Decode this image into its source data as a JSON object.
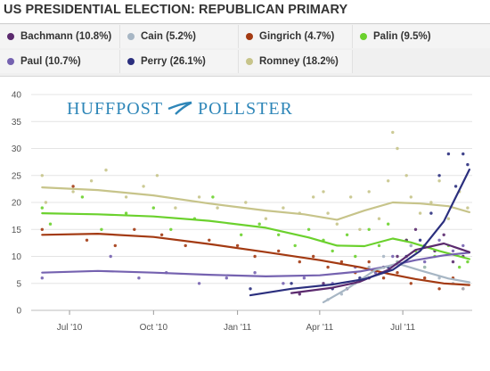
{
  "header": {
    "title": "US PRESIDENTIAL ELECTION: REPUBLICAN PRIMARY"
  },
  "legend": [
    {
      "label": "Bachmann (10.8%)",
      "color": "#5b2a6e",
      "icon": "dot-icon"
    },
    {
      "label": "Cain (5.2%)",
      "color": "#a7b6c4",
      "icon": "dot-icon"
    },
    {
      "label": "Gingrich (4.7%)",
      "color": "#a33a12",
      "icon": "dot-icon"
    },
    {
      "label": "Palin (9.5%)",
      "color": "#6bd12d",
      "icon": "dot-icon"
    },
    {
      "label": "Paul (10.7%)",
      "color": "#7562b0",
      "icon": "dot-icon"
    },
    {
      "label": "Perry (26.1%)",
      "color": "#2b2f7e",
      "icon": "dot-icon"
    },
    {
      "label": "Romney (18.2%)",
      "color": "#c7c48a",
      "icon": "dot-icon"
    }
  ],
  "watermark": {
    "left": "HUFFPOST",
    "right": "POLLSTER",
    "color": "#2e86b8"
  },
  "chart_data": {
    "type": "line",
    "title": "US PRESIDENTIAL ELECTION: REPUBLICAN PRIMARY",
    "xlabel": "",
    "ylabel": "",
    "x_range": [
      "2010-05-20",
      "2011-09-15"
    ],
    "ylim": [
      0,
      40
    ],
    "y_ticks": [
      "0",
      "5",
      "10",
      "15",
      "20",
      "25",
      "30",
      "35",
      "40"
    ],
    "x_ticks": [
      {
        "label": "Jul '10",
        "date": "2010-07-01"
      },
      {
        "label": "Oct '10",
        "date": "2010-10-01"
      },
      {
        "label": "Jan '11",
        "date": "2011-01-01"
      },
      {
        "label": "Apr '11",
        "date": "2011-04-01"
      },
      {
        "label": "Jul '11",
        "date": "2011-07-01"
      }
    ],
    "grid": true,
    "series": [
      {
        "name": "Romney",
        "color": "#c7c48a",
        "trend": [
          [
            "2010-06-01",
            22.8
          ],
          [
            "2010-08-01",
            22.3
          ],
          [
            "2010-10-01",
            21.3
          ],
          [
            "2010-12-01",
            19.8
          ],
          [
            "2011-02-01",
            18.5
          ],
          [
            "2011-03-15",
            17.8
          ],
          [
            "2011-04-20",
            16.8
          ],
          [
            "2011-05-20",
            18.5
          ],
          [
            "2011-06-20",
            20.0
          ],
          [
            "2011-07-20",
            19.8
          ],
          [
            "2011-08-20",
            19.3
          ],
          [
            "2011-09-12",
            18.2
          ]
        ],
        "points": [
          [
            "2010-06-01",
            25
          ],
          [
            "2010-06-05",
            20
          ],
          [
            "2010-07-05",
            22
          ],
          [
            "2010-07-25",
            24
          ],
          [
            "2010-08-10",
            26
          ],
          [
            "2010-09-01",
            21
          ],
          [
            "2010-09-20",
            23
          ],
          [
            "2010-10-05",
            25
          ],
          [
            "2010-10-25",
            19
          ],
          [
            "2010-11-20",
            21
          ],
          [
            "2010-12-10",
            19
          ],
          [
            "2011-01-10",
            20
          ],
          [
            "2011-02-01",
            17
          ],
          [
            "2011-02-20",
            19
          ],
          [
            "2011-03-10",
            18
          ],
          [
            "2011-03-25",
            21
          ],
          [
            "2011-04-05",
            22
          ],
          [
            "2011-04-10",
            18
          ],
          [
            "2011-04-20",
            16
          ],
          [
            "2011-05-05",
            21
          ],
          [
            "2011-05-15",
            15
          ],
          [
            "2011-05-25",
            22
          ],
          [
            "2011-06-05",
            17
          ],
          [
            "2011-06-15",
            24
          ],
          [
            "2011-06-20",
            33
          ],
          [
            "2011-06-25",
            30
          ],
          [
            "2011-07-05",
            25
          ],
          [
            "2011-07-10",
            21
          ],
          [
            "2011-07-20",
            18
          ],
          [
            "2011-08-01",
            20
          ],
          [
            "2011-08-10",
            24
          ],
          [
            "2011-08-20",
            17
          ],
          [
            "2011-09-01",
            22
          ],
          [
            "2011-09-10",
            19
          ]
        ]
      },
      {
        "name": "Palin",
        "color": "#6bd12d",
        "trend": [
          [
            "2010-06-01",
            18.0
          ],
          [
            "2010-08-01",
            17.8
          ],
          [
            "2010-10-01",
            17.4
          ],
          [
            "2010-12-01",
            16.6
          ],
          [
            "2011-02-01",
            15.3
          ],
          [
            "2011-03-20",
            13.5
          ],
          [
            "2011-04-20",
            12.0
          ],
          [
            "2011-05-20",
            11.9
          ],
          [
            "2011-06-20",
            13.3
          ],
          [
            "2011-07-10",
            12.6
          ],
          [
            "2011-08-10",
            11.0
          ],
          [
            "2011-09-12",
            9.5
          ]
        ],
        "points": [
          [
            "2010-06-01",
            19
          ],
          [
            "2010-06-10",
            16
          ],
          [
            "2010-07-15",
            21
          ],
          [
            "2010-08-05",
            15
          ],
          [
            "2010-09-01",
            18
          ],
          [
            "2010-10-01",
            19
          ],
          [
            "2010-10-20",
            15
          ],
          [
            "2010-11-15",
            17
          ],
          [
            "2010-12-05",
            21
          ],
          [
            "2011-01-05",
            14
          ],
          [
            "2011-01-25",
            16
          ],
          [
            "2011-02-15",
            14
          ],
          [
            "2011-03-05",
            12
          ],
          [
            "2011-03-20",
            15
          ],
          [
            "2011-04-05",
            13
          ],
          [
            "2011-04-15",
            11
          ],
          [
            "2011-05-01",
            14
          ],
          [
            "2011-05-10",
            10
          ],
          [
            "2011-05-25",
            15
          ],
          [
            "2011-06-05",
            12
          ],
          [
            "2011-06-15",
            16
          ],
          [
            "2011-06-25",
            9
          ],
          [
            "2011-07-05",
            13
          ],
          [
            "2011-07-15",
            11
          ],
          [
            "2011-07-25",
            8
          ],
          [
            "2011-08-05",
            10
          ],
          [
            "2011-08-20",
            12
          ],
          [
            "2011-09-01",
            8
          ],
          [
            "2011-09-10",
            9
          ]
        ]
      },
      {
        "name": "Gingrich",
        "color": "#a33a12",
        "trend": [
          [
            "2010-06-01",
            14.0
          ],
          [
            "2010-08-01",
            14.2
          ],
          [
            "2010-10-01",
            13.6
          ],
          [
            "2010-12-01",
            12.3
          ],
          [
            "2011-02-01",
            10.8
          ],
          [
            "2011-04-01",
            9.3
          ],
          [
            "2011-05-15",
            8.0
          ],
          [
            "2011-06-15",
            6.8
          ],
          [
            "2011-07-15",
            5.8
          ],
          [
            "2011-08-15",
            5.0
          ],
          [
            "2011-09-12",
            4.7
          ]
        ],
        "points": [
          [
            "2010-06-01",
            15
          ],
          [
            "2010-07-05",
            23
          ],
          [
            "2010-07-20",
            13
          ],
          [
            "2010-08-20",
            12
          ],
          [
            "2010-09-10",
            15
          ],
          [
            "2010-10-10",
            14
          ],
          [
            "2010-11-05",
            12
          ],
          [
            "2010-12-01",
            13
          ],
          [
            "2011-01-01",
            12
          ],
          [
            "2011-01-20",
            10
          ],
          [
            "2011-02-15",
            11
          ],
          [
            "2011-03-10",
            9
          ],
          [
            "2011-03-25",
            10
          ],
          [
            "2011-04-10",
            8
          ],
          [
            "2011-04-25",
            9
          ],
          [
            "2011-05-10",
            7
          ],
          [
            "2011-05-25",
            9
          ],
          [
            "2011-06-10",
            6
          ],
          [
            "2011-06-25",
            7
          ],
          [
            "2011-07-10",
            5
          ],
          [
            "2011-07-25",
            6
          ],
          [
            "2011-08-10",
            4
          ],
          [
            "2011-08-25",
            6
          ],
          [
            "2011-09-05",
            4
          ]
        ]
      },
      {
        "name": "Paul",
        "color": "#7562b0",
        "trend": [
          [
            "2010-06-01",
            7.0
          ],
          [
            "2010-08-01",
            7.3
          ],
          [
            "2010-10-01",
            7.0
          ],
          [
            "2010-12-01",
            6.6
          ],
          [
            "2011-02-01",
            6.3
          ],
          [
            "2011-04-01",
            6.5
          ],
          [
            "2011-05-15",
            7.2
          ],
          [
            "2011-06-15",
            8.2
          ],
          [
            "2011-07-15",
            9.3
          ],
          [
            "2011-08-15",
            10.2
          ],
          [
            "2011-09-12",
            10.7
          ]
        ],
        "points": [
          [
            "2010-06-01",
            6
          ],
          [
            "2010-08-15",
            10
          ],
          [
            "2010-09-15",
            6
          ],
          [
            "2010-10-15",
            7
          ],
          [
            "2010-11-20",
            5
          ],
          [
            "2010-12-20",
            6
          ],
          [
            "2011-01-20",
            7
          ],
          [
            "2011-02-20",
            5
          ],
          [
            "2011-03-15",
            6
          ],
          [
            "2011-04-15",
            5
          ],
          [
            "2011-05-10",
            8
          ],
          [
            "2011-06-01",
            7
          ],
          [
            "2011-06-20",
            10
          ],
          [
            "2011-07-10",
            12
          ],
          [
            "2011-07-25",
            9
          ],
          [
            "2011-08-10",
            13
          ],
          [
            "2011-08-25",
            11
          ],
          [
            "2011-09-05",
            12
          ]
        ]
      },
      {
        "name": "Cain",
        "color": "#a7b6c4",
        "trend": [
          [
            "2011-04-05",
            1.5
          ],
          [
            "2011-05-01",
            4.0
          ],
          [
            "2011-06-01",
            7.5
          ],
          [
            "2011-06-25",
            8.7
          ],
          [
            "2011-07-20",
            7.4
          ],
          [
            "2011-08-20",
            5.9
          ],
          [
            "2011-09-12",
            5.2
          ]
        ],
        "points": [
          [
            "2011-04-10",
            2
          ],
          [
            "2011-04-25",
            3
          ],
          [
            "2011-05-10",
            5
          ],
          [
            "2011-05-25",
            8
          ],
          [
            "2011-06-10",
            10
          ],
          [
            "2011-06-25",
            9
          ],
          [
            "2011-07-10",
            12
          ],
          [
            "2011-07-25",
            8
          ],
          [
            "2011-08-10",
            6
          ],
          [
            "2011-08-25",
            5
          ],
          [
            "2011-09-05",
            4
          ]
        ]
      },
      {
        "name": "Bachmann",
        "color": "#5b2a6e",
        "trend": [
          [
            "2011-03-01",
            3.2
          ],
          [
            "2011-04-15",
            4.2
          ],
          [
            "2011-05-15",
            5.3
          ],
          [
            "2011-06-15",
            7.5
          ],
          [
            "2011-07-15",
            11.2
          ],
          [
            "2011-08-15",
            12.4
          ],
          [
            "2011-09-12",
            10.8
          ]
        ],
        "points": [
          [
            "2011-03-10",
            3
          ],
          [
            "2011-04-05",
            5
          ],
          [
            "2011-05-01",
            4
          ],
          [
            "2011-05-25",
            6
          ],
          [
            "2011-06-10",
            8
          ],
          [
            "2011-06-25",
            10
          ],
          [
            "2011-07-05",
            13
          ],
          [
            "2011-07-15",
            15
          ],
          [
            "2011-07-25",
            12
          ],
          [
            "2011-08-05",
            11
          ],
          [
            "2011-08-15",
            14
          ],
          [
            "2011-08-25",
            9
          ],
          [
            "2011-09-05",
            10
          ]
        ]
      },
      {
        "name": "Perry",
        "color": "#2b2f7e",
        "trend": [
          [
            "2011-01-15",
            2.8
          ],
          [
            "2011-03-01",
            4.0
          ],
          [
            "2011-04-15",
            4.8
          ],
          [
            "2011-05-20",
            5.8
          ],
          [
            "2011-06-20",
            7.5
          ],
          [
            "2011-07-20",
            11.0
          ],
          [
            "2011-08-15",
            16.5
          ],
          [
            "2011-09-12",
            26.1
          ]
        ],
        "points": [
          [
            "2011-01-15",
            4
          ],
          [
            "2011-03-01",
            5
          ],
          [
            "2011-04-15",
            4
          ],
          [
            "2011-05-15",
            6
          ],
          [
            "2011-06-15",
            8
          ],
          [
            "2011-07-05",
            10
          ],
          [
            "2011-07-20",
            13
          ],
          [
            "2011-08-01",
            18
          ],
          [
            "2011-08-10",
            25
          ],
          [
            "2011-08-20",
            29
          ],
          [
            "2011-08-28",
            23
          ],
          [
            "2011-09-05",
            29
          ],
          [
            "2011-09-10",
            27
          ]
        ]
      }
    ]
  }
}
